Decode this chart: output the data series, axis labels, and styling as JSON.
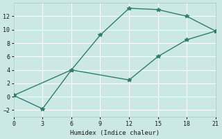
{
  "line1_x": [
    0,
    6,
    9,
    12,
    15,
    18,
    21
  ],
  "line1_y": [
    0.2,
    4.0,
    9.2,
    13.2,
    13.0,
    12.0,
    9.8
  ],
  "line2_x": [
    0,
    3,
    6,
    12,
    15,
    18,
    21
  ],
  "line2_y": [
    0.2,
    -1.8,
    4.0,
    2.5,
    6.0,
    8.5,
    9.8
  ],
  "color": "#2e7d6e",
  "bg_color": "#cce8e4",
  "grid_color": "#ffffff",
  "xlabel": "Humidex (Indice chaleur)",
  "xlim": [
    0,
    21
  ],
  "ylim": [
    -3,
    14
  ],
  "xticks": [
    0,
    3,
    6,
    9,
    12,
    15,
    18,
    21
  ],
  "yticks": [
    -2,
    0,
    2,
    4,
    6,
    8,
    10,
    12
  ],
  "marker": "*",
  "markersize": 4,
  "linewidth": 1.0
}
